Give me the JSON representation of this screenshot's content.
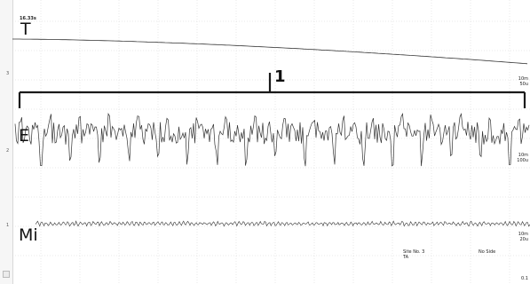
{
  "time_label": "16.33s",
  "marker_label": "1",
  "channels": [
    {
      "name": "T",
      "index": "3",
      "scale_top": "",
      "scale_bottom": ""
    },
    {
      "name": "E",
      "index": "2",
      "scale_top": "10m",
      "scale_bottom": "100u"
    },
    {
      "name": "Mi",
      "index": "1",
      "scale_top": "10m",
      "scale_bottom": "20u"
    }
  ],
  "top_scale": {
    "top": "10m",
    "bottom": "50u"
  },
  "status": {
    "site": "Site No. 3",
    "site_sub": "TA",
    "side": "No Side",
    "corner_value": "0.1"
  },
  "colors": {
    "trace": "#333333",
    "grid": "#d4d4d4",
    "bracket": "#1a1a1a"
  }
}
